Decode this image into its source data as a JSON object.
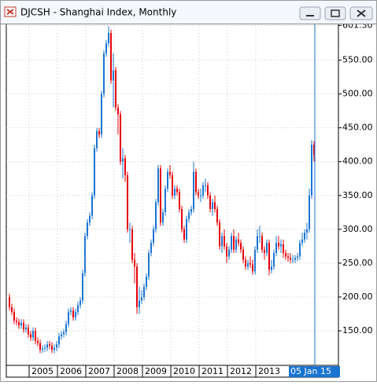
{
  "chart_data": {
    "type": "candlestick",
    "title": "DJCSH - Shanghai Index, Monthly",
    "crosshair_label": "05 Jan 15",
    "up_color": "#1a74d2",
    "down_color": "#e8000b",
    "grid": true,
    "ylim": [
      99,
      604
    ],
    "yticks": [
      {
        "value": 150,
        "label": "150.00"
      },
      {
        "value": 200,
        "label": "200.00"
      },
      {
        "value": 250,
        "label": "250.00"
      },
      {
        "value": 300,
        "label": "300.00"
      },
      {
        "value": 350,
        "label": "350.00"
      },
      {
        "value": 400,
        "label": "400.00"
      },
      {
        "value": 450,
        "label": "450.00"
      },
      {
        "value": 500,
        "label": "500.00"
      },
      {
        "value": 550,
        "label": "550.00"
      },
      {
        "value": 601.3,
        "label": "601.30"
      }
    ],
    "categories": [
      null,
      null,
      null,
      null,
      null,
      null,
      null,
      null,
      null,
      "2005",
      null,
      null,
      null,
      null,
      null,
      null,
      null,
      null,
      null,
      null,
      null,
      "2006",
      null,
      null,
      null,
      null,
      null,
      null,
      null,
      null,
      null,
      null,
      null,
      "2007",
      null,
      null,
      null,
      null,
      null,
      null,
      null,
      null,
      null,
      null,
      null,
      "2008",
      null,
      null,
      null,
      null,
      null,
      null,
      null,
      null,
      null,
      null,
      null,
      "2009",
      null,
      null,
      null,
      null,
      null,
      null,
      null,
      null,
      null,
      null,
      null,
      "2010",
      null,
      null,
      null,
      null,
      null,
      null,
      null,
      null,
      null,
      null,
      null,
      "2011",
      null,
      null,
      null,
      null,
      null,
      null,
      null,
      null,
      null,
      null,
      null,
      "2012",
      null,
      null,
      null,
      null,
      null,
      null,
      null,
      null,
      null,
      null,
      null,
      "2013",
      null,
      null,
      null,
      null,
      null,
      null,
      null,
      null,
      null,
      null,
      null,
      null,
      null,
      null,
      null,
      null,
      null,
      null,
      null,
      null,
      null,
      null,
      null,
      null
    ],
    "open": [
      200,
      185,
      178,
      165,
      163,
      158,
      162,
      152,
      155,
      145,
      140,
      150,
      135,
      132,
      122,
      124,
      125,
      130,
      128,
      122,
      125,
      130,
      142,
      145,
      148,
      160,
      178,
      180,
      170,
      178,
      188,
      195,
      235,
      290,
      310,
      320,
      350,
      420,
      445,
      440,
      500,
      560,
      575,
      590,
      520,
      535,
      480,
      470,
      400,
      405,
      380,
      300,
      300,
      255,
      245,
      185,
      195,
      200,
      215,
      230,
      265,
      280,
      300,
      340,
      390,
      310,
      325,
      360,
      385,
      380,
      350,
      360,
      355,
      330,
      300,
      285,
      315,
      325,
      330,
      385,
      355,
      350,
      350,
      365,
      365,
      350,
      330,
      340,
      330,
      310,
      275,
      290,
      275,
      260,
      270,
      290,
      270,
      285,
      280,
      270,
      255,
      245,
      250,
      248,
      238,
      270,
      290,
      290,
      270,
      265,
      280,
      240,
      245,
      265,
      280,
      275,
      278,
      265,
      260,
      258,
      255,
      255,
      258,
      260,
      280,
      285,
      295,
      300,
      350,
      425
    ],
    "high": [
      205,
      190,
      183,
      170,
      168,
      167,
      167,
      160,
      160,
      150,
      155,
      155,
      140,
      137,
      129,
      130,
      135,
      135,
      133,
      130,
      135,
      147,
      150,
      153,
      165,
      183,
      185,
      185,
      183,
      193,
      200,
      240,
      295,
      315,
      325,
      355,
      425,
      450,
      450,
      505,
      565,
      580,
      600,
      595,
      560,
      540,
      485,
      475,
      420,
      410,
      385,
      310,
      305,
      265,
      250,
      215,
      210,
      220,
      235,
      270,
      285,
      305,
      345,
      395,
      395,
      330,
      365,
      390,
      395,
      385,
      365,
      365,
      360,
      335,
      305,
      320,
      330,
      335,
      400,
      390,
      360,
      360,
      370,
      375,
      370,
      355,
      345,
      350,
      335,
      315,
      295,
      300,
      280,
      275,
      295,
      300,
      290,
      295,
      285,
      275,
      260,
      255,
      260,
      255,
      275,
      300,
      305,
      295,
      275,
      285,
      285,
      255,
      270,
      290,
      290,
      285,
      285,
      270,
      265,
      265,
      262,
      262,
      265,
      285,
      295,
      300,
      310,
      360,
      432,
      430
    ],
    "low": [
      180,
      173,
      160,
      158,
      153,
      153,
      147,
      147,
      140,
      135,
      135,
      130,
      127,
      117,
      117,
      119,
      120,
      123,
      117,
      117,
      120,
      125,
      137,
      140,
      143,
      155,
      173,
      165,
      165,
      173,
      183,
      190,
      230,
      285,
      305,
      315,
      345,
      415,
      435,
      435,
      495,
      555,
      570,
      515,
      480,
      475,
      440,
      395,
      375,
      370,
      295,
      280,
      250,
      220,
      175,
      175,
      190,
      195,
      210,
      225,
      260,
      275,
      295,
      335,
      305,
      305,
      320,
      355,
      375,
      345,
      345,
      350,
      325,
      295,
      280,
      280,
      310,
      320,
      325,
      350,
      345,
      340,
      345,
      355,
      345,
      325,
      320,
      325,
      305,
      270,
      265,
      270,
      250,
      255,
      265,
      265,
      265,
      275,
      265,
      250,
      240,
      240,
      243,
      233,
      233,
      265,
      280,
      265,
      255,
      260,
      232,
      235,
      240,
      260,
      270,
      265,
      258,
      255,
      252,
      250,
      250,
      250,
      253,
      255,
      275,
      280,
      285,
      295,
      345,
      400
    ],
    "close": [
      185,
      178,
      165,
      163,
      158,
      162,
      152,
      155,
      145,
      140,
      150,
      135,
      132,
      122,
      124,
      125,
      130,
      128,
      122,
      125,
      130,
      142,
      145,
      148,
      160,
      178,
      180,
      170,
      178,
      188,
      195,
      235,
      290,
      310,
      320,
      350,
      420,
      445,
      440,
      500,
      560,
      575,
      590,
      520,
      535,
      480,
      470,
      400,
      405,
      380,
      300,
      300,
      255,
      245,
      185,
      195,
      200,
      215,
      230,
      265,
      280,
      300,
      340,
      390,
      310,
      325,
      360,
      385,
      380,
      350,
      360,
      355,
      330,
      300,
      285,
      315,
      325,
      330,
      385,
      355,
      350,
      350,
      365,
      365,
      350,
      330,
      340,
      330,
      310,
      275,
      290,
      275,
      260,
      270,
      290,
      270,
      285,
      280,
      270,
      255,
      245,
      250,
      248,
      238,
      270,
      290,
      290,
      270,
      265,
      280,
      240,
      245,
      265,
      280,
      275,
      278,
      265,
      260,
      258,
      255,
      255,
      258,
      260,
      280,
      285,
      295,
      300,
      350,
      425,
      410
    ]
  }
}
